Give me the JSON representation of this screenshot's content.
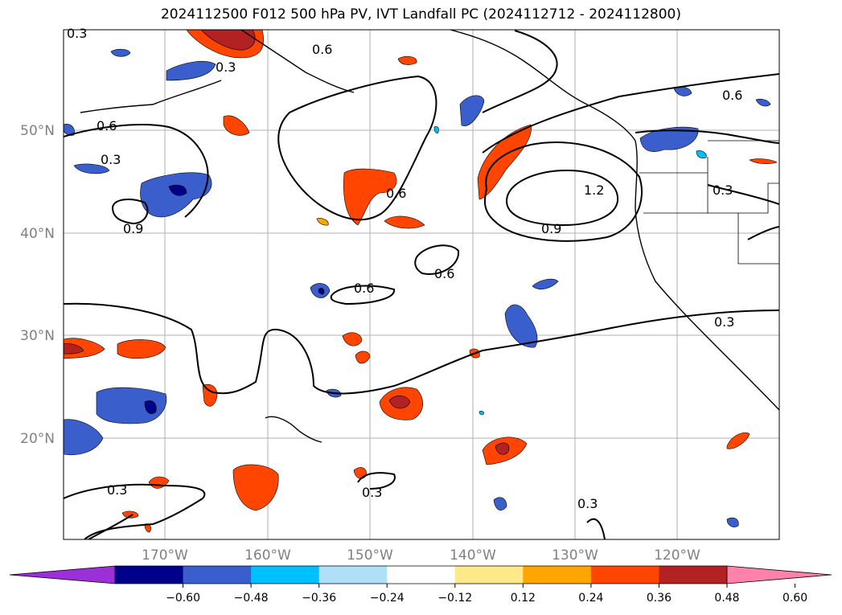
{
  "title": "2024112500 F012 500 hPa PV, IVT Landfall PC (2024112712 - 2024112800)",
  "map": {
    "lat_labels": [
      "50°N",
      "40°N",
      "30°N",
      "20°N"
    ],
    "lon_labels": [
      "170°W",
      "160°W",
      "150°W",
      "140°W",
      "130°W",
      "120°W"
    ],
    "contour_labels": [
      "0.3",
      "0.3",
      "0.6",
      "0.6",
      "0.6",
      "0.6",
      "0.9",
      "0.9",
      "1.2",
      "0.3",
      "0.3",
      "0.6",
      "0.3",
      "0.3",
      "0.3",
      "0.3",
      "0.6"
    ]
  },
  "colorbar": {
    "ticks": [
      "−0.60",
      "−0.48",
      "−0.36",
      "−0.24",
      "−0.12",
      "0.12",
      "0.24",
      "0.36",
      "0.48",
      "0.60"
    ],
    "colors": [
      "#9b30d9",
      "#00008b",
      "#3a5fcd",
      "#00bfff",
      "#afe0f8",
      "#ffffff",
      "#ffe98a",
      "#ffa500",
      "#ff4500",
      "#b22222",
      "#ff82ab"
    ]
  },
  "colors": {
    "neg_deep": "#00008b",
    "neg_mid": "#3a5fcd",
    "neg_light": "#00bfff",
    "neg_pale": "#afe0f8",
    "pos_pale": "#ffe98a",
    "pos_mid": "#ffa500",
    "pos_strong": "#ff4500",
    "pos_deep": "#b22222"
  }
}
